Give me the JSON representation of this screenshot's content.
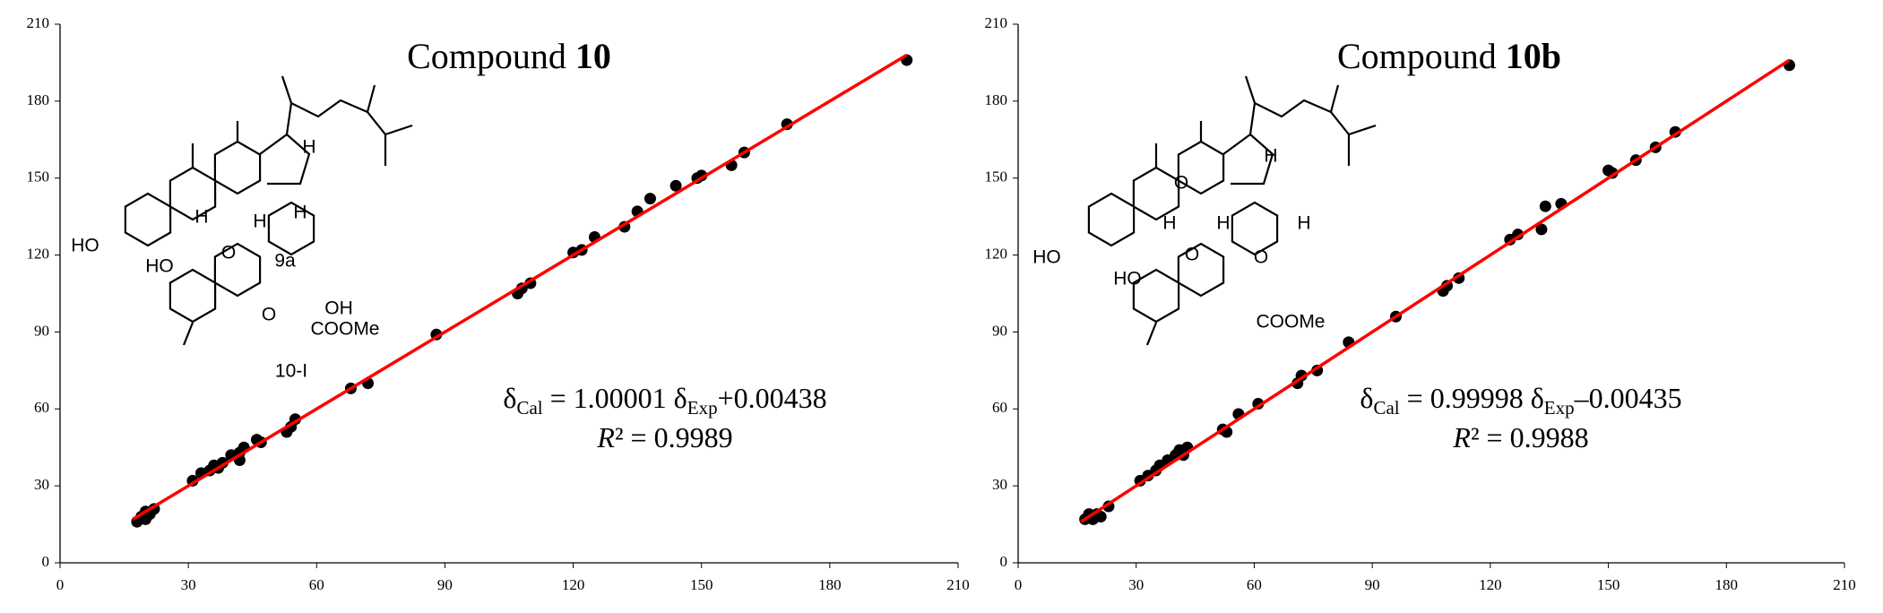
{
  "chart_data": [
    {
      "type": "scatter",
      "title": "Compound",
      "title_bold": "10",
      "x": [
        18,
        19,
        20,
        21,
        22,
        20,
        31,
        33,
        35,
        36,
        37,
        38,
        40,
        42,
        42,
        43,
        46,
        47,
        53,
        54,
        55,
        68,
        72,
        88,
        107,
        108,
        110,
        120,
        122,
        125,
        132,
        135,
        138,
        144,
        149,
        150,
        157,
        160,
        170,
        198
      ],
      "values": [
        16,
        18,
        20,
        19,
        21,
        17,
        32,
        35,
        36,
        38,
        37,
        39,
        42,
        43,
        40,
        45,
        48,
        47,
        51,
        53,
        56,
        68,
        70,
        89,
        105,
        107,
        109,
        121,
        122,
        127,
        131,
        137,
        142,
        147,
        150,
        151,
        155,
        160,
        171,
        196
      ],
      "color": "#000000",
      "fit_line": {
        "x": [
          17,
          198
        ],
        "y": [
          17,
          198
        ],
        "color": "#ff0000"
      },
      "equation": [
        "δ",
        "Cal",
        " = 1.00001 δ",
        "Exp",
        "+0.00438"
      ],
      "r2": [
        "R",
        "² = 0.9989"
      ],
      "structure_labels": [
        "HO",
        "HO",
        "O",
        "O",
        "OH",
        "COOMe",
        "10-I",
        "H",
        "H",
        "H",
        "H",
        "9a"
      ],
      "xlim": [
        0,
        210
      ],
      "ylim": [
        0,
        210
      ],
      "xticks": [
        0,
        30,
        60,
        90,
        120,
        150,
        180,
        210
      ],
      "yticks": [
        0,
        30,
        60,
        90,
        120,
        150,
        180,
        210
      ]
    },
    {
      "type": "scatter",
      "title": "Compound",
      "title_bold": "10b",
      "x": [
        17,
        18,
        19,
        20,
        21,
        23,
        31,
        33,
        35,
        36,
        38,
        40,
        41,
        42,
        43,
        52,
        53,
        56,
        61,
        71,
        72,
        76,
        84,
        96,
        108,
        109,
        112,
        125,
        127,
        133,
        134,
        138,
        150,
        151,
        157,
        162,
        167,
        196
      ],
      "values": [
        17,
        19,
        17,
        19,
        18,
        22,
        32,
        34,
        36,
        38,
        40,
        42,
        44,
        42,
        45,
        52,
        51,
        58,
        62,
        70,
        73,
        75,
        86,
        96,
        106,
        108,
        111,
        126,
        128,
        130,
        139,
        140,
        153,
        152,
        157,
        162,
        168,
        194
      ],
      "color": "#000000",
      "fit_line": {
        "x": [
          16,
          196
        ],
        "y": [
          16,
          196
        ],
        "color": "#ff0000"
      },
      "equation": [
        "δ",
        "Cal",
        " = 0.99998 δ",
        "Exp",
        "–0.00435"
      ],
      "r2": [
        "R",
        "² = 0.9988"
      ],
      "structure_labels": [
        "HO",
        "HO",
        "O",
        "O",
        "O",
        "COOMe",
        "H",
        "H",
        "H",
        "H"
      ],
      "xlim": [
        0,
        210
      ],
      "ylim": [
        0,
        210
      ],
      "xticks": [
        0,
        30,
        60,
        90,
        120,
        150,
        180,
        210
      ],
      "yticks": [
        0,
        30,
        60,
        90,
        120,
        150,
        180,
        210
      ]
    }
  ]
}
